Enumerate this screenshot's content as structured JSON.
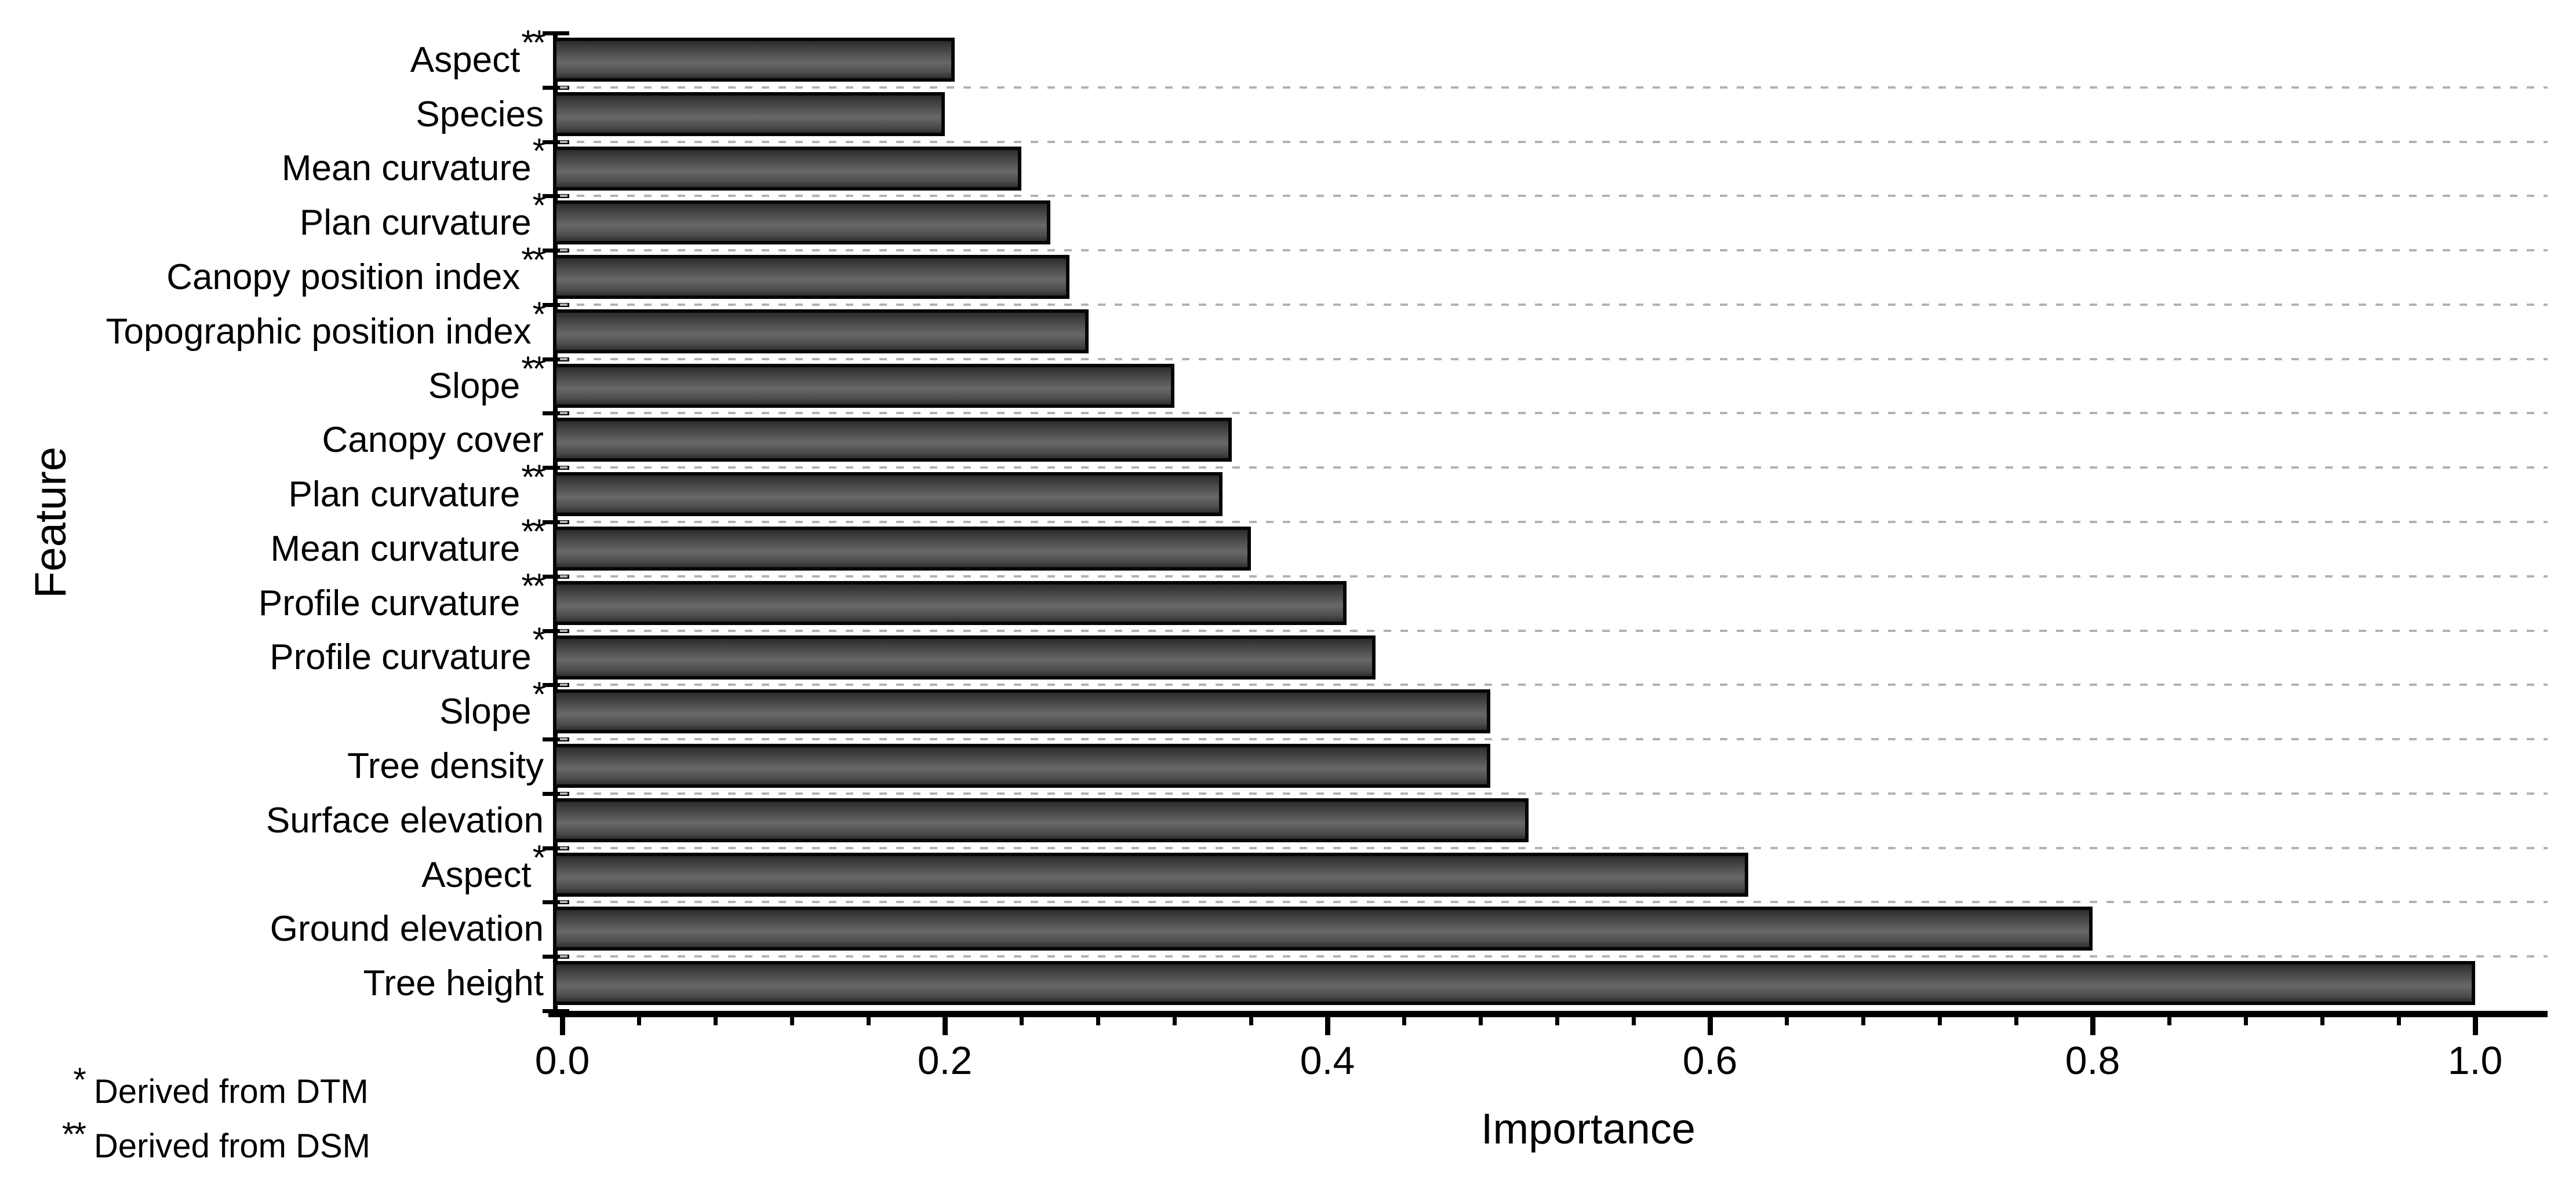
{
  "figure": {
    "y_axis_title": "Feature",
    "x_axis_title": "Importance",
    "footnotes": [
      {
        "marker": "*",
        "text": "Derived from DTM"
      },
      {
        "marker": "**",
        "text": "Derived from DSM"
      }
    ]
  },
  "chart_data": {
    "type": "bar",
    "orientation": "horizontal",
    "title": "",
    "xlabel": "Importance",
    "ylabel": "Feature",
    "xlim": [
      0.0,
      1.0
    ],
    "x_major_ticks": [
      0.0,
      0.2,
      0.4,
      0.6,
      0.8,
      1.0
    ],
    "x_tick_labels": [
      "0.0",
      "0.2",
      "0.4",
      "0.6",
      "0.8",
      "1.0"
    ],
    "x_minor_tick_step": 0.04,
    "grid": "horizontal dashed separators between categories",
    "legend": "none",
    "bar_fill_color": "#555555",
    "bar_outline_color": "#000000",
    "gridline_color": "#b2b2b2",
    "categories_top_to_bottom": [
      {
        "label": "Aspect",
        "marker": "**",
        "value": 0.205
      },
      {
        "label": "Species",
        "marker": "",
        "value": 0.2
      },
      {
        "label": "Mean curvature",
        "marker": "*",
        "value": 0.24
      },
      {
        "label": "Plan curvature",
        "marker": "*",
        "value": 0.255
      },
      {
        "label": "Canopy position index",
        "marker": "**",
        "value": 0.265
      },
      {
        "label": "Topographic position index",
        "marker": "*",
        "value": 0.275
      },
      {
        "label": "Slope",
        "marker": "**",
        "value": 0.32
      },
      {
        "label": "Canopy cover",
        "marker": "",
        "value": 0.35
      },
      {
        "label": "Plan curvature",
        "marker": "**",
        "value": 0.345
      },
      {
        "label": "Mean curvature",
        "marker": "**",
        "value": 0.36
      },
      {
        "label": "Profile curvature",
        "marker": "**",
        "value": 0.41
      },
      {
        "label": "Profile curvature",
        "marker": "*",
        "value": 0.425
      },
      {
        "label": "Slope",
        "marker": "*",
        "value": 0.485
      },
      {
        "label": "Tree density",
        "marker": "",
        "value": 0.485
      },
      {
        "label": "Surface elevation",
        "marker": "",
        "value": 0.505
      },
      {
        "label": "Aspect",
        "marker": "*",
        "value": 0.62
      },
      {
        "label": "Ground elevation",
        "marker": "",
        "value": 0.8
      },
      {
        "label": "Tree height",
        "marker": "",
        "value": 1.0
      }
    ]
  }
}
